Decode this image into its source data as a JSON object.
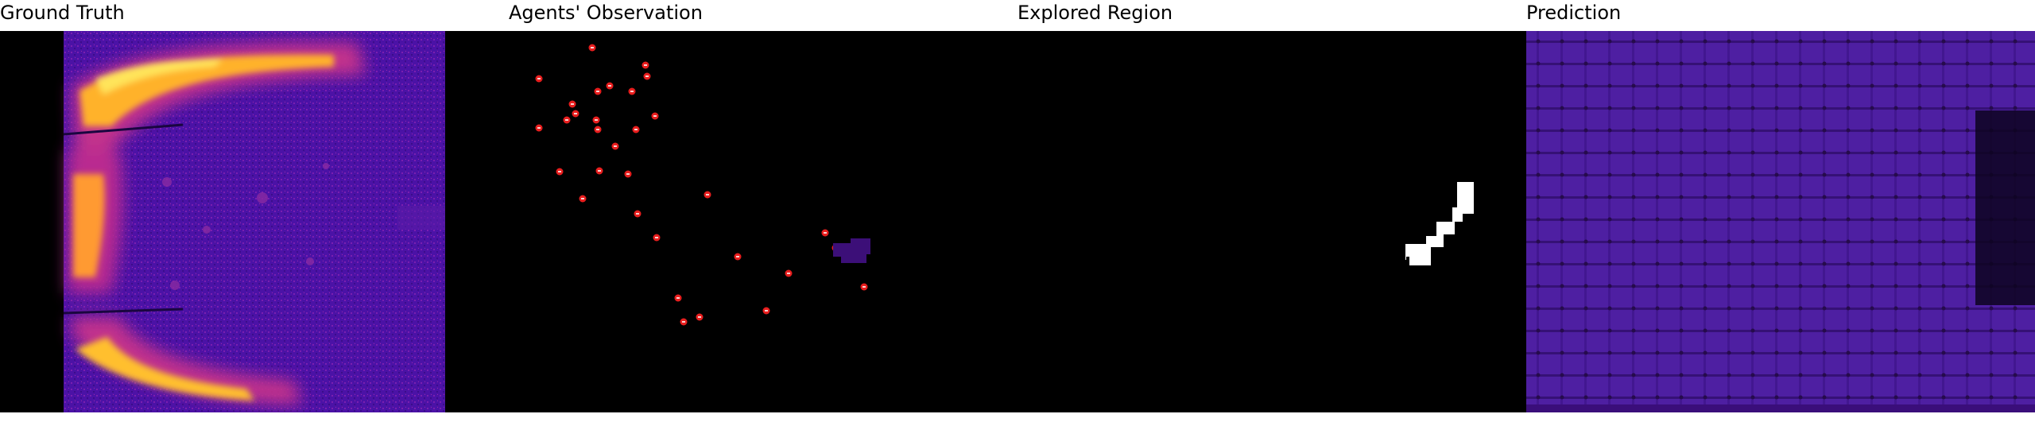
{
  "panels": [
    {
      "id": "ground-truth",
      "title": "Ground Truth"
    },
    {
      "id": "agents-observation",
      "title": "Agents' Observation"
    },
    {
      "id": "explored-region",
      "title": "Explored Region"
    },
    {
      "id": "prediction",
      "title": "Prediction"
    }
  ],
  "colors": {
    "background": "#000000",
    "heat_low": "#4a0fa0",
    "heat_mid": "#c0288e",
    "heat_high": "#ffd33a",
    "agent_marker": "#e81e1e",
    "explored": "#ffffff"
  },
  "agents": {
    "count": 32
  }
}
